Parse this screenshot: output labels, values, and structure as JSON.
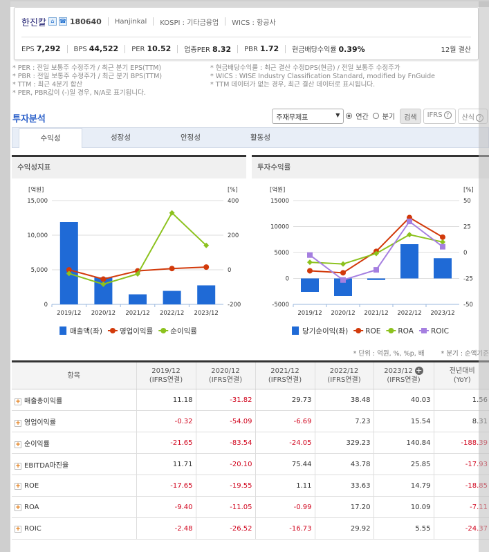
{
  "company": {
    "name": "한진칼",
    "code": "180640",
    "eng": "Hanjinkal",
    "market": "KOSPI : 기타금융업",
    "wics": "WICS : 항공사",
    "icons": [
      "home-icon",
      "phone-icon"
    ]
  },
  "metrics": [
    {
      "label": "EPS",
      "value": "7,292"
    },
    {
      "label": "BPS",
      "value": "44,522"
    },
    {
      "label": "PER",
      "value": "10.52"
    },
    {
      "label": "업종PER",
      "value": "8.32"
    },
    {
      "label": "PBR",
      "value": "1.72"
    },
    {
      "label": "현금배당수익률",
      "value": "0.39%"
    }
  ],
  "fiscal": "12월 결산",
  "notes": [
    "* PER : 전일 보통주 수정주가 / 최근 분기 EPS(TTM)",
    "* 현금배당수익률 : 최근 결산 수정DPS(현금) / 전일 보통주 수정주가",
    "* PBR : 전일 보통주 수정주가 / 최근 분기 BPS(TTM)",
    "* WICS : WISE Industry Classification Standard, modified by FnGuide",
    "* TTM : 최근 4분기 합산",
    "* TTM 데이터가 없는 경우, 최근 결산 데이터로 표시됩니다.",
    "* PER, PBR값이 (-)일 경우, N/A로 표기됩니다.",
    ""
  ],
  "section_title": "투자분석",
  "controls": {
    "select": "주재무제표",
    "annual": "연간",
    "quarter": "분기",
    "search": "검색",
    "ifrs": "IFRS",
    "formula": "산식"
  },
  "tabs": [
    "수익성",
    "성장성",
    "안정성",
    "활동성"
  ],
  "chart_data": [
    {
      "type": "bar+line",
      "title": "수익성지표",
      "categories": [
        "2019/12",
        "2020/12",
        "2021/12",
        "2022/12",
        "2023/12"
      ],
      "left_unit": "[억원]",
      "right_unit": "[%]",
      "ylim": [
        0,
        15000
      ],
      "yticks": [
        "15,000",
        "10,000",
        "5,000",
        "0"
      ],
      "y2lim": [
        -200,
        400
      ],
      "y2ticks": [
        "400",
        "200",
        "0",
        "-200"
      ],
      "series": [
        {
          "name": "매출액(좌)",
          "kind": "bar",
          "axis": "left",
          "color": "#1f6ad6",
          "values": [
            11900,
            3900,
            1450,
            1950,
            2750
          ]
        },
        {
          "name": "영업이익률",
          "kind": "line",
          "axis": "right",
          "color": "#d23a0b",
          "marker": "circle",
          "values": [
            -0.32,
            -54.09,
            -6.69,
            7.23,
            15.54
          ]
        },
        {
          "name": "순이익률",
          "kind": "line",
          "axis": "right",
          "color": "#8cc21e",
          "marker": "diamond",
          "values": [
            -21.65,
            -83.54,
            -24.05,
            329.23,
            140.84
          ]
        }
      ],
      "legend": "bottom"
    },
    {
      "type": "bar+line",
      "title": "투자수익률",
      "categories": [
        "2019/12",
        "2020/12",
        "2021/12",
        "2022/12",
        "2023/12"
      ],
      "left_unit": "[억원]",
      "right_unit": "[%]",
      "ylim": [
        -5000,
        15000
      ],
      "yticks": [
        "15000",
        "10000",
        "5000",
        "0",
        "-5000"
      ],
      "y2lim": [
        -50,
        50
      ],
      "y2ticks": [
        "50",
        "25",
        "0",
        "-25",
        "-50"
      ],
      "series": [
        {
          "name": "당기순이익(좌)",
          "kind": "bar",
          "axis": "left",
          "color": "#1f6ad6",
          "values": [
            -2600,
            -3400,
            -300,
            6600,
            3900
          ]
        },
        {
          "name": "ROE",
          "kind": "line",
          "axis": "right",
          "color": "#d23a0b",
          "marker": "circle",
          "values": [
            -17.65,
            -19.55,
            1.11,
            33.63,
            14.79
          ]
        },
        {
          "name": "ROA",
          "kind": "line",
          "axis": "right",
          "color": "#8cc21e",
          "marker": "diamond",
          "values": [
            -9.4,
            -11.05,
            -0.99,
            17.2,
            10.09
          ]
        },
        {
          "name": "ROIC",
          "kind": "line",
          "axis": "right",
          "color": "#a57fe0",
          "marker": "square",
          "values": [
            -2.48,
            -26.52,
            -16.73,
            29.92,
            5.55
          ]
        }
      ],
      "legend": "bottom"
    }
  ],
  "units_note": "* 단위 : 억원, %, %p, 배",
  "quarter_note": "* 분기 : 순액기준",
  "table": {
    "headers": [
      "항목",
      "2019/12",
      "2020/12",
      "2021/12",
      "2022/12",
      "2023/12",
      "전년대비"
    ],
    "subheaders": [
      "",
      "(IFRS연결)",
      "(IFRS연결)",
      "(IFRS연결)",
      "(IFRS연결)",
      "(IFRS연결)",
      "(YoY)"
    ],
    "rows": [
      [
        "매출총이익률",
        "11.18",
        "-31.82",
        "29.73",
        "38.48",
        "40.03",
        "1.56"
      ],
      [
        "영업이익률",
        "-0.32",
        "-54.09",
        "-6.69",
        "7.23",
        "15.54",
        "8.31"
      ],
      [
        "순이익률",
        "-21.65",
        "-83.54",
        "-24.05",
        "329.23",
        "140.84",
        "-188.39"
      ],
      [
        "EBITDA마진율",
        "11.71",
        "-20.10",
        "75.44",
        "43.78",
        "25.85",
        "-17.93"
      ],
      [
        "ROE",
        "-17.65",
        "-19.55",
        "1.11",
        "33.63",
        "14.79",
        "-18.85"
      ],
      [
        "ROA",
        "-9.40",
        "-11.05",
        "-0.99",
        "17.20",
        "10.09",
        "-7.11"
      ],
      [
        "ROIC",
        "-2.48",
        "-26.52",
        "-16.73",
        "29.92",
        "5.55",
        "-24.37"
      ]
    ]
  }
}
